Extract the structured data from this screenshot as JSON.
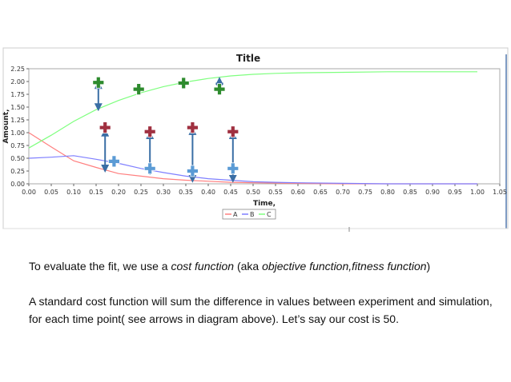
{
  "chart_data": {
    "type": "line",
    "title": "Title",
    "xlabel": "Time,",
    "ylabel": "Amount,",
    "xlim": [
      0,
      1.05
    ],
    "ylim": [
      0,
      2.25
    ],
    "x_ticks": [
      "0.00",
      "0.05",
      "0.10",
      "0.15",
      "0.20",
      "0.25",
      "0.30",
      "0.35",
      "0.40",
      "0.45",
      "0.50",
      "0.55",
      "0.60",
      "0.65",
      "0.70",
      "0.75",
      "0.80",
      "0.85",
      "0.90",
      "0.95",
      "1.00",
      "1.05"
    ],
    "y_ticks": [
      "0.00",
      "0.25",
      "0.50",
      "0.75",
      "1.00",
      "1.25",
      "1.50",
      "1.75",
      "2.00",
      "2.25"
    ],
    "grid": false,
    "legend_position": "bottom-center",
    "series": [
      {
        "name": "A",
        "color": "#ff7f7f",
        "x": [
          0,
          0.05,
          0.1,
          0.15,
          0.2,
          0.25,
          0.3,
          0.35,
          0.4,
          0.45,
          0.5,
          0.6,
          0.7,
          0.8,
          0.9,
          1.0
        ],
        "y": [
          1.0,
          0.72,
          0.45,
          0.32,
          0.2,
          0.15,
          0.1,
          0.07,
          0.05,
          0.03,
          0.02,
          0.01,
          0.0,
          0.0,
          0.0,
          0.0
        ]
      },
      {
        "name": "B",
        "color": "#7f7fff",
        "x": [
          0,
          0.05,
          0.1,
          0.15,
          0.2,
          0.25,
          0.3,
          0.35,
          0.4,
          0.45,
          0.5,
          0.55,
          0.6,
          0.7,
          0.8,
          0.9,
          1.0
        ],
        "y": [
          0.5,
          0.52,
          0.55,
          0.48,
          0.4,
          0.3,
          0.22,
          0.15,
          0.1,
          0.07,
          0.04,
          0.03,
          0.02,
          0.01,
          0.0,
          0.0,
          0.0
        ]
      },
      {
        "name": "C",
        "color": "#7fff7f",
        "x": [
          0,
          0.05,
          0.1,
          0.15,
          0.2,
          0.25,
          0.3,
          0.35,
          0.4,
          0.45,
          0.5,
          0.55,
          0.6,
          0.7,
          0.8,
          0.9,
          1.0
        ],
        "y": [
          0.7,
          0.95,
          1.22,
          1.45,
          1.63,
          1.78,
          1.9,
          1.99,
          2.06,
          2.11,
          2.14,
          2.16,
          2.17,
          2.18,
          2.19,
          2.19,
          2.19
        ]
      }
    ],
    "experimental_points": [
      {
        "series": "C",
        "x": 0.155,
        "y": 1.98,
        "color": "#2e8b2e"
      },
      {
        "series": "C",
        "x": 0.245,
        "y": 1.85,
        "color": "#2e8b2e"
      },
      {
        "series": "C",
        "x": 0.345,
        "y": 1.97,
        "color": "#2e8b2e"
      },
      {
        "series": "C",
        "x": 0.425,
        "y": 1.85,
        "color": "#2e8b2e"
      },
      {
        "series": "A",
        "x": 0.17,
        "y": 1.1,
        "color": "#a03040"
      },
      {
        "series": "A",
        "x": 0.27,
        "y": 1.02,
        "color": "#a03040"
      },
      {
        "series": "A",
        "x": 0.365,
        "y": 1.1,
        "color": "#a03040"
      },
      {
        "series": "A",
        "x": 0.455,
        "y": 1.02,
        "color": "#a03040"
      },
      {
        "series": "B",
        "x": 0.19,
        "y": 0.44,
        "color": "#5b9bd5"
      },
      {
        "series": "B",
        "x": 0.27,
        "y": 0.3,
        "color": "#5b9bd5"
      },
      {
        "series": "B",
        "x": 0.365,
        "y": 0.25,
        "color": "#5b9bd5"
      },
      {
        "series": "B",
        "x": 0.455,
        "y": 0.3,
        "color": "#5b9bd5"
      }
    ],
    "annotation_arrows": [
      {
        "x": 0.155,
        "y_from": 1.98,
        "y_to": 1.45
      },
      {
        "x": 0.425,
        "y_from": 2.06,
        "y_to": 1.85
      },
      {
        "x": 0.17,
        "y_from": 1.05,
        "y_to": 0.25
      },
      {
        "x": 0.27,
        "y_from": 1.0,
        "y_to": 0.2
      },
      {
        "x": 0.365,
        "y_from": 1.08,
        "y_to": 0.05
      },
      {
        "x": 0.455,
        "y_from": 1.0,
        "y_to": 0.05
      }
    ]
  },
  "text": {
    "para1": {
      "p1": "To evaluate the fit, we use a ",
      "p2": "cost function",
      "p3": " (aka ",
      "p4": "objective function,fitness function",
      "p5": ")"
    },
    "para2": " A standard cost function will sum the difference in values between experiment and simulation, for each  time point( see arrows in diagram above). Let’s say our cost is 50."
  }
}
